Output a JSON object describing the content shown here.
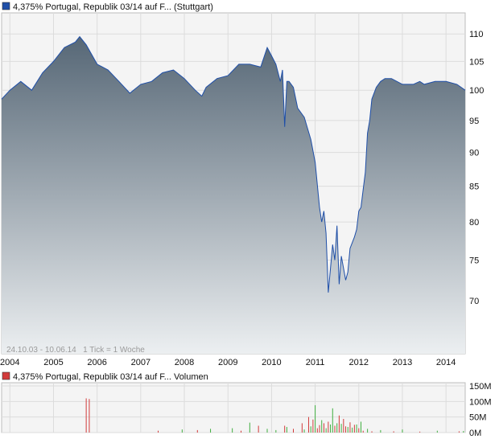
{
  "colors": {
    "price_line": "#1f4fa8",
    "area_top": "#566776",
    "area_bottom": "#eceff1",
    "plot_bg": "#f4f4f4",
    "grid": "#dcdcdc",
    "vol_up": "#3fae3f",
    "vol_down": "#d23a3a",
    "legend_price": "#1f4fa8",
    "legend_volume": "#d23a3a"
  },
  "chart_data": [
    {
      "type": "area",
      "legend": "4,375% Portugal, Republik 03/14 auf F... (Stuttgart)",
      "footnote": "24.10.03 - 10.06.14   1 Tick = 1 Woche",
      "x_ticks": [
        "2004",
        "2005",
        "2006",
        "2007",
        "2008",
        "2009",
        "2010",
        "2011",
        "2012",
        "2013",
        "2014"
      ],
      "y_ticks": [
        "110",
        "105",
        "100",
        "95",
        "90",
        "85",
        "80",
        "75",
        "70"
      ],
      "x_domain": [
        2003.81,
        2014.44
      ],
      "y_scale": "log",
      "ylim": [
        64,
        114
      ],
      "series": [
        {
          "x": [
            2003.81,
            2004.0,
            2004.25,
            2004.5,
            2004.75,
            2005.0,
            2005.25,
            2005.5,
            2005.6,
            2005.75,
            2006.0,
            2006.25,
            2006.5,
            2006.75,
            2007.0,
            2007.25,
            2007.5,
            2007.75,
            2008.0,
            2008.25,
            2008.4,
            2008.5,
            2008.75,
            2009.0,
            2009.25,
            2009.5,
            2009.75,
            2009.9,
            2010.0,
            2010.1,
            2010.2,
            2010.25,
            2010.3,
            2010.35,
            2010.4,
            2010.5,
            2010.6,
            2010.75,
            2010.9,
            2011.0,
            2011.1,
            2011.15,
            2011.2,
            2011.25,
            2011.3,
            2011.4,
            2011.45,
            2011.5,
            2011.55,
            2011.6,
            2011.7,
            2011.75,
            2011.8,
            2011.9,
            2011.95,
            2012.0,
            2012.05,
            2012.1,
            2012.15,
            2012.2,
            2012.25,
            2012.3,
            2012.4,
            2012.5,
            2012.6,
            2012.75,
            2013.0,
            2013.25,
            2013.4,
            2013.5,
            2013.75,
            2014.0,
            2014.25,
            2014.44
          ],
          "y": [
            98.5,
            100.0,
            101.5,
            100.0,
            103.0,
            105.0,
            107.5,
            108.5,
            109.5,
            108.0,
            104.5,
            103.5,
            101.5,
            99.5,
            101.0,
            101.5,
            103.0,
            103.5,
            102.0,
            100.0,
            99.0,
            100.5,
            102.0,
            102.5,
            104.5,
            104.5,
            104.0,
            107.5,
            106.0,
            104.5,
            101.5,
            103.5,
            94.0,
            101.5,
            101.5,
            100.5,
            97.0,
            95.5,
            92.0,
            88.5,
            82.0,
            80.0,
            81.5,
            78.5,
            71.0,
            77.0,
            75.0,
            79.5,
            72.0,
            75.5,
            72.5,
            73.5,
            76.5,
            78.0,
            79.0,
            81.5,
            82.0,
            84.5,
            87.0,
            93.0,
            95.0,
            98.5,
            100.5,
            101.5,
            102.0,
            102.0,
            101.0,
            101.0,
            101.5,
            101.0,
            101.5,
            101.5,
            101.0,
            100.0
          ]
        }
      ]
    },
    {
      "type": "bar",
      "legend": "4,375% Portugal, Republik 03/14 auf F... Volumen",
      "y_ticks": [
        "150M",
        "100M",
        "50M",
        "0M"
      ],
      "ylim": [
        0,
        150
      ],
      "unit": "M",
      "series": [
        {
          "name": "Volumen",
          "x": [
            2005.75,
            2005.82,
            2007.4,
            2007.95,
            2008.3,
            2008.6,
            2009.1,
            2009.3,
            2009.5,
            2009.7,
            2009.9,
            2010.1,
            2010.3,
            2010.35,
            2010.5,
            2010.7,
            2010.75,
            2010.85,
            2010.9,
            2010.95,
            2011.0,
            2011.05,
            2011.1,
            2011.15,
            2011.2,
            2011.25,
            2011.3,
            2011.35,
            2011.4,
            2011.45,
            2011.5,
            2011.55,
            2011.6,
            2011.65,
            2011.7,
            2011.75,
            2011.8,
            2011.85,
            2011.9,
            2011.95,
            2012.0,
            2012.05,
            2012.1,
            2012.2,
            2012.3,
            2012.5,
            2012.8,
            2013.0,
            2013.4,
            2013.8,
            2014.3,
            2014.4
          ],
          "values": [
            110,
            108,
            6,
            10,
            8,
            12,
            14,
            6,
            32,
            22,
            12,
            8,
            22,
            18,
            12,
            30,
            10,
            50,
            20,
            42,
            88,
            14,
            24,
            40,
            30,
            14,
            35,
            26,
            78,
            22,
            30,
            55,
            28,
            44,
            20,
            18,
            33,
            16,
            25,
            26,
            14,
            35,
            6,
            12,
            4,
            8,
            4,
            10,
            3,
            6,
            4,
            5
          ],
          "direction": [
            "down",
            "down",
            "down",
            "up",
            "down",
            "up",
            "up",
            "down",
            "up",
            "down",
            "up",
            "up",
            "down",
            "up",
            "down",
            "down",
            "up",
            "down",
            "up",
            "down",
            "up",
            "down",
            "down",
            "up",
            "down",
            "up",
            "down",
            "up",
            "up",
            "down",
            "up",
            "down",
            "up",
            "down",
            "down",
            "up",
            "down",
            "up",
            "down",
            "up",
            "down",
            "up",
            "down",
            "up",
            "down",
            "up",
            "down",
            "up",
            "down",
            "up",
            "down",
            "up"
          ]
        }
      ]
    }
  ]
}
